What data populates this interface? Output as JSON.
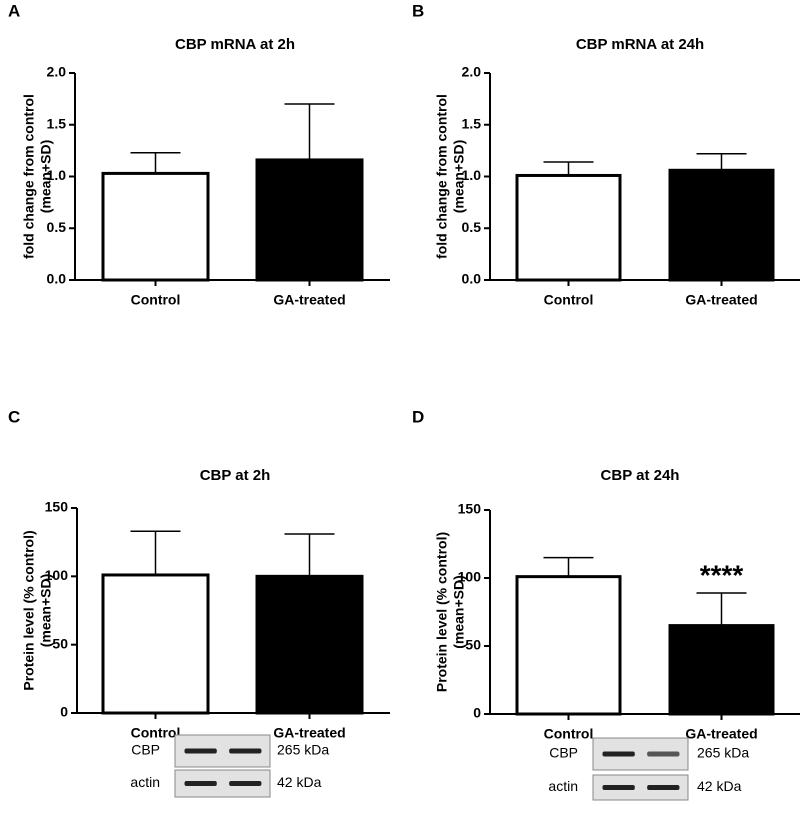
{
  "chart_data": [
    {
      "type": "bar",
      "panel": "A",
      "title": "CBP mRNA at 2h",
      "y_label": [
        "fold change from control",
        "(mean+SD)"
      ],
      "categories": [
        "Control",
        "GA-treated"
      ],
      "values": [
        1.03,
        1.16
      ],
      "errors": [
        0.2,
        0.54
      ],
      "colors": [
        "#ffffff",
        "#000000"
      ],
      "ylim": [
        0,
        2
      ],
      "yticks": [
        {
          "value": 0,
          "label": "0.0"
        },
        0.5,
        {
          "value": 1,
          "label": "1.0"
        },
        1.5,
        {
          "value": 2,
          "label": "2.0"
        }
      ]
    },
    {
      "type": "bar",
      "panel": "B",
      "title": "CBP mRNA at 24h",
      "y_label": [
        "fold change from control",
        "(mean+SD)"
      ],
      "categories": [
        "Control",
        "GA-treated"
      ],
      "values": [
        1.01,
        1.06
      ],
      "errors": [
        0.13,
        0.16
      ],
      "colors": [
        "#ffffff",
        "#000000"
      ],
      "ylim": [
        0,
        2
      ],
      "yticks": [
        {
          "value": 0,
          "label": "0.0"
        },
        0.5,
        {
          "value": 1,
          "label": "1.0"
        },
        1.5,
        {
          "value": 2,
          "label": "2.0"
        }
      ]
    },
    {
      "type": "bar",
      "panel": "C",
      "title": "CBP at 2h",
      "y_label": [
        "Protein level (% control)",
        "(mean+SD)"
      ],
      "categories": [
        "Control",
        "GA-treated"
      ],
      "values": [
        101,
        100
      ],
      "errors": [
        32,
        31
      ],
      "colors": [
        "#ffffff",
        "#000000"
      ],
      "ylim": [
        0,
        150
      ],
      "yticks": [
        0,
        50,
        100,
        150
      ],
      "blot": {
        "bands": [
          "CBP",
          "actin"
        ],
        "sizes": [
          "265 kDa",
          "42 kDa"
        ]
      }
    },
    {
      "type": "bar",
      "panel": "D",
      "title": "CBP at 24h",
      "y_label": [
        "Protein level (% control)",
        "(mean+SD)"
      ],
      "categories": [
        "Control",
        "GA-treated"
      ],
      "values": [
        101,
        65
      ],
      "errors": [
        14,
        24
      ],
      "colors": [
        "#ffffff",
        "#000000"
      ],
      "ylim": [
        0,
        150
      ],
      "yticks": [
        0,
        50,
        100,
        150
      ],
      "annotations": [
        "****"
      ],
      "blot": {
        "bands": [
          "CBP",
          "actin"
        ],
        "sizes": [
          "265 kDa",
          "42 kDa"
        ]
      }
    }
  ]
}
